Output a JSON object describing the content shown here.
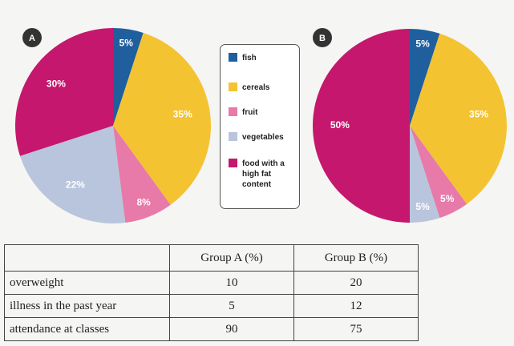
{
  "chart_data": [
    {
      "type": "pie",
      "title": "A",
      "categories": [
        "fish",
        "cereals",
        "fruit",
        "vegetables",
        "food with a high fat content"
      ],
      "values": [
        5,
        35,
        8,
        22,
        30
      ],
      "value_labels": [
        "5%",
        "35%",
        "8%",
        "22%",
        "30%"
      ],
      "colors": [
        "#1f5f9e",
        "#f3c332",
        "#e77aa9",
        "#b9c5dc",
        "#c5176d"
      ]
    },
    {
      "type": "pie",
      "title": "B",
      "categories": [
        "fish",
        "cereals",
        "fruit",
        "vegetables",
        "food with a high fat content"
      ],
      "values": [
        5,
        35,
        5,
        5,
        50
      ],
      "value_labels": [
        "5%",
        "35%",
        "5%",
        "5%",
        "50%"
      ],
      "colors": [
        "#1f5f9e",
        "#f3c332",
        "#e77aa9",
        "#b9c5dc",
        "#c5176d"
      ]
    }
  ],
  "table": {
    "columns": [
      "Group A (%)",
      "Group B (%)"
    ],
    "rows": [
      [
        "overweight",
        10,
        20
      ],
      [
        "illness in the past year",
        5,
        12
      ],
      [
        "attendance at classes",
        90,
        75
      ]
    ]
  }
}
